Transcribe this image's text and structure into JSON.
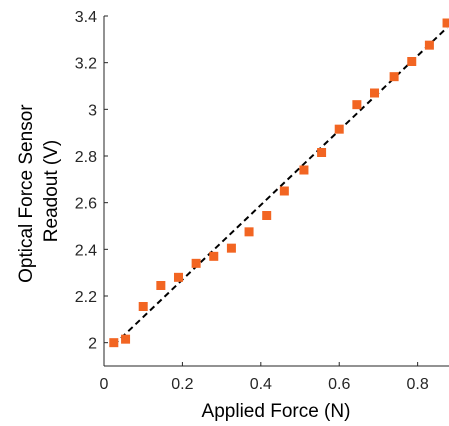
{
  "chart_data": {
    "type": "scatter",
    "xlabel": "Applied Force (N)",
    "ylabel": [
      "Optical Force Sensor",
      "Readout (V)"
    ],
    "xlim": [
      0,
      0.88
    ],
    "ylim": [
      1.9,
      3.4
    ],
    "xticks": [
      0,
      0.2,
      0.4,
      0.6,
      0.8
    ],
    "xtick_labels": [
      "0",
      "0.2",
      "0.4",
      "0.6",
      "0.8"
    ],
    "yticks": [
      2,
      2.2,
      2.4,
      2.6,
      2.8,
      3,
      3.2,
      3.4
    ],
    "ytick_labels": [
      "2",
      "2.2",
      "2.4",
      "2.6",
      "2.8",
      "3",
      "3.2",
      "3.4"
    ],
    "grid": false,
    "series": [
      {
        "type": "scatter",
        "marker": "square",
        "color": "#f26522",
        "x": [
          0.025,
          0.055,
          0.1,
          0.145,
          0.19,
          0.235,
          0.28,
          0.325,
          0.37,
          0.415,
          0.46,
          0.51,
          0.555,
          0.6,
          0.645,
          0.69,
          0.74,
          0.785,
          0.83,
          0.875
        ],
        "y": [
          2.0,
          2.015,
          2.155,
          2.245,
          2.28,
          2.34,
          2.37,
          2.405,
          2.475,
          2.545,
          2.65,
          2.74,
          2.815,
          2.915,
          3.02,
          3.07,
          3.14,
          3.205,
          3.275,
          3.37
        ]
      },
      {
        "type": "line",
        "style": "dashed",
        "color": "#000000",
        "x": [
          0.025,
          0.875
        ],
        "y": [
          1.99,
          3.35
        ]
      }
    ]
  }
}
